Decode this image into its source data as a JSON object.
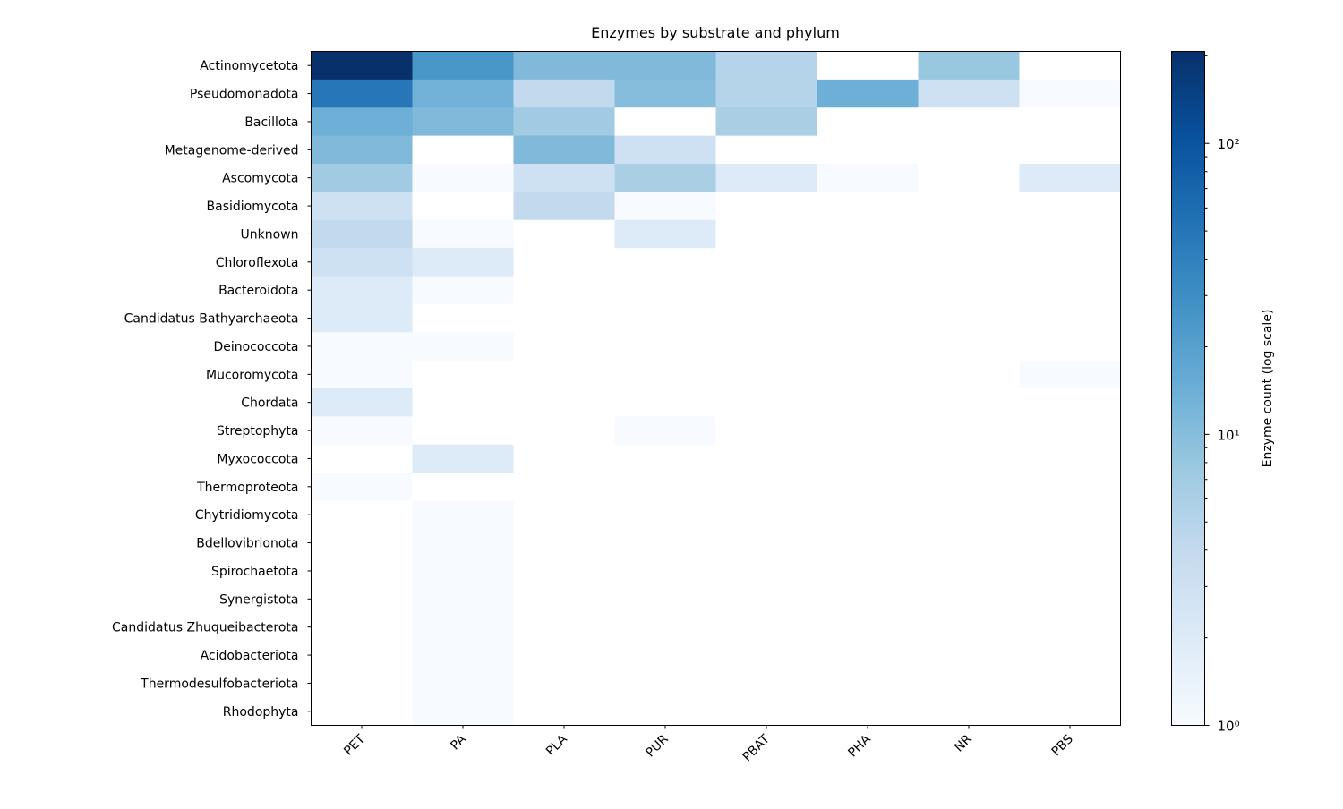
{
  "chart_data": {
    "type": "heatmap",
    "title": "Enzymes by substrate and phylum",
    "xlabel": "",
    "ylabel": "",
    "x_categories": [
      "PET",
      "PA",
      "PLA",
      "PUR",
      "PBAT",
      "PHA",
      "NR",
      "PBS"
    ],
    "y_categories": [
      "Actinomycetota",
      "Pseudomonadota",
      "Bacillota",
      "Metagenome-derived",
      "Ascomycota",
      "Basidiomycota",
      "Unknown",
      "Chloroflexota",
      "Bacteroidota",
      "Candidatus Bathyarchaeota",
      "Deinococcota",
      "Mucoromycota",
      "Chordata",
      "Streptophyta",
      "Myxococcota",
      "Thermoproteota",
      "Chytridiomycota",
      "Bdellovibrionota",
      "Spirochaetota",
      "Synergistota",
      "Candidatus Zhuqueibacterota",
      "Acidobacteriota",
      "Thermodesulfobacteriota",
      "Rhodophyta"
    ],
    "values": [
      [
        207,
        25,
        11,
        11,
        5,
        0,
        8,
        0
      ],
      [
        49,
        13,
        4,
        10,
        5,
        14,
        3,
        1
      ],
      [
        14,
        11,
        7,
        0,
        6,
        0,
        0,
        0
      ],
      [
        11,
        0,
        11,
        3,
        0,
        0,
        0,
        0
      ],
      [
        7,
        1,
        3,
        6,
        2,
        1,
        0,
        2
      ],
      [
        3,
        0,
        4,
        1,
        0,
        0,
        0,
        0
      ],
      [
        4,
        1,
        0,
        2,
        0,
        0,
        0,
        0
      ],
      [
        3,
        2,
        0,
        0,
        0,
        0,
        0,
        0
      ],
      [
        2,
        1,
        0,
        0,
        0,
        0,
        0,
        0
      ],
      [
        2,
        0,
        0,
        0,
        0,
        0,
        0,
        0
      ],
      [
        1,
        1,
        0,
        0,
        0,
        0,
        0,
        0
      ],
      [
        1,
        0,
        0,
        0,
        0,
        0,
        0,
        1
      ],
      [
        2,
        0,
        0,
        0,
        0,
        0,
        0,
        0
      ],
      [
        1,
        0,
        0,
        1,
        0,
        0,
        0,
        0
      ],
      [
        0,
        2,
        0,
        0,
        0,
        0,
        0,
        0
      ],
      [
        1,
        0,
        0,
        0,
        0,
        0,
        0,
        0
      ],
      [
        0,
        1,
        0,
        0,
        0,
        0,
        0,
        0
      ],
      [
        0,
        1,
        0,
        0,
        0,
        0,
        0,
        0
      ],
      [
        0,
        1,
        0,
        0,
        0,
        0,
        0,
        0
      ],
      [
        0,
        1,
        0,
        0,
        0,
        0,
        0,
        0
      ],
      [
        0,
        1,
        0,
        0,
        0,
        0,
        0,
        0
      ],
      [
        0,
        1,
        0,
        0,
        0,
        0,
        0,
        0
      ],
      [
        0,
        1,
        0,
        0,
        0,
        0,
        0,
        0
      ],
      [
        0,
        1,
        0,
        0,
        0,
        0,
        0,
        0
      ]
    ],
    "colormap": "Blues",
    "color_scale": "log",
    "color_range": [
      1,
      207
    ],
    "zero_color": "#ffffff",
    "colorbar": {
      "label": "Enzyme count (log scale)",
      "ticks": [
        1,
        10,
        100
      ],
      "tick_labels": [
        "10⁰",
        "10¹",
        "10²"
      ]
    },
    "grid": false
  }
}
